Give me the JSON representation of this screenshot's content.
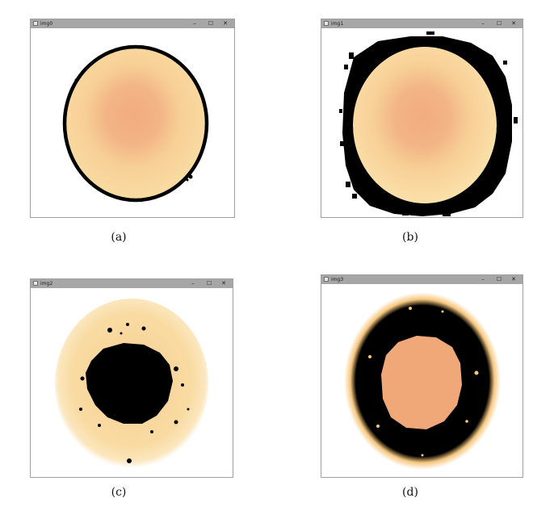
{
  "windows": [
    {
      "title": "img0",
      "min": "–",
      "max": "☐",
      "close": "✕"
    },
    {
      "title": "img1",
      "min": "–",
      "max": "☐",
      "close": "✕"
    },
    {
      "title": "img2",
      "min": "–",
      "max": "☐",
      "close": "✕"
    },
    {
      "title": "img3",
      "min": "–",
      "max": "☐",
      "close": "✕"
    }
  ],
  "captions": [
    "(a)",
    "(b)",
    "(c)",
    "(d)"
  ],
  "colors": {
    "titlebar": "#a6a6a6",
    "yellow": "#f9d99a",
    "pale_yellow": "#fbe6b8",
    "orange": "#f0a878",
    "black": "#000000"
  },
  "icons": [
    "app-window-icon",
    "minimize-icon",
    "maximize-icon",
    "close-icon"
  ]
}
